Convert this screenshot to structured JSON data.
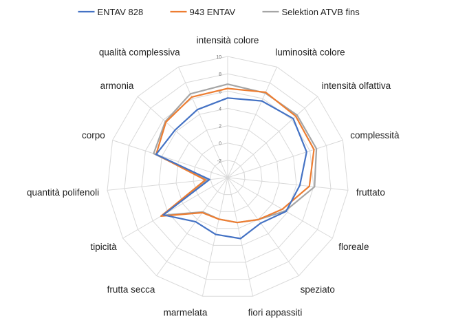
{
  "chart_data": {
    "type": "radar",
    "categories": [
      "intensità colore",
      "luminosità colore",
      "intensità olfattiva",
      "complessità",
      "fruttato",
      "floreale",
      "speziato",
      "fiori appassiti",
      "marmelata",
      "frutta secca",
      "tipicità",
      "quantità polifenoli",
      "corpo",
      "armonia",
      "qualità complessiva"
    ],
    "rlim": [
      -4,
      10
    ],
    "ticks": [
      "-4",
      "-2",
      "0",
      "2",
      "4",
      "6",
      "8",
      "10"
    ],
    "grid": true,
    "legend_position": "top",
    "series": [
      {
        "name": "ENTAV 828",
        "color": "#4472C4",
        "values": [
          5.2,
          5.7,
          6.2,
          5.6,
          4.4,
          3.8,
          2.5,
          3.2,
          2.7,
          2.3,
          4.6,
          -1.9,
          4.7,
          4.2,
          4.6
        ]
      },
      {
        "name": "943 ENTAV",
        "color": "#ED7D31",
        "values": [
          6.3,
          6.8,
          6.6,
          6.5,
          5.5,
          3.3,
          2.0,
          1.3,
          0.9,
          1.0,
          4.9,
          -1.4,
          4.7,
          5.6,
          6.2
        ]
      },
      {
        "name": "Selektion ATVB fins",
        "color": "#A5A5A5",
        "values": [
          6.8,
          6.7,
          6.8,
          6.8,
          6.1,
          3.7,
          2.0,
          1.3,
          0.9,
          0.9,
          4.7,
          -1.6,
          5.0,
          5.7,
          6.6
        ]
      }
    ]
  }
}
